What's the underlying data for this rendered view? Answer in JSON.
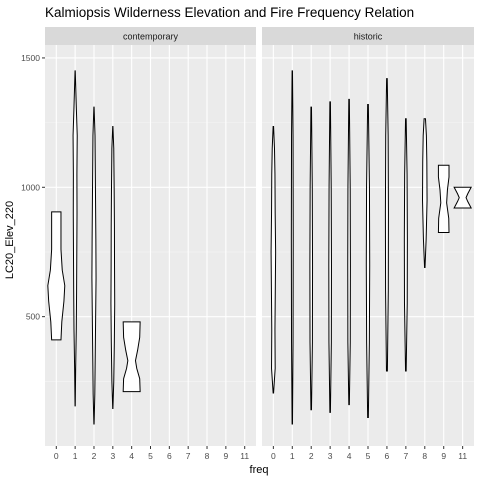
{
  "chart_data": {
    "type": "violin",
    "title": "Kalmiopsis Wilderness Elevation and Fire Frequency Relation",
    "xlabel": "freq",
    "ylabel": "LC20_Elev_220",
    "ylim": [
      0,
      1550
    ],
    "y_ticks": [
      500,
      1000,
      1500
    ],
    "x_categories": [
      "0",
      "1",
      "2",
      "3",
      "4",
      "5",
      "6",
      "7",
      "8",
      "9",
      "11"
    ],
    "grid": true,
    "panels": [
      {
        "name": "contemporary",
        "violins": [
          {
            "freq": "0",
            "min": 410,
            "max": 905,
            "max_halfwidth": 0.45,
            "profile": [
              [
                410,
                0.55
              ],
              [
                480,
                0.65
              ],
              [
                560,
                0.9
              ],
              [
                620,
                1.0
              ],
              [
                680,
                0.7
              ],
              [
                760,
                0.55
              ],
              [
                850,
                0.55
              ],
              [
                905,
                0.55
              ]
            ]
          },
          {
            "freq": "1",
            "min": 155,
            "max": 1450,
            "max_halfwidth": 0.11,
            "profile": [
              [
                155,
                0.05
              ],
              [
                300,
                0.25
              ],
              [
                450,
                0.55
              ],
              [
                600,
                0.7
              ],
              [
                750,
                0.8
              ],
              [
                900,
                0.9
              ],
              [
                1050,
                0.85
              ],
              [
                1200,
                1.0
              ],
              [
                1300,
                0.6
              ],
              [
                1450,
                0.05
              ]
            ]
          },
          {
            "freq": "2",
            "min": 85,
            "max": 1310,
            "max_halfwidth": 0.11,
            "profile": [
              [
                85,
                0.05
              ],
              [
                200,
                0.4
              ],
              [
                350,
                0.6
              ],
              [
                500,
                0.8
              ],
              [
                650,
                1.0
              ],
              [
                800,
                0.9
              ],
              [
                950,
                0.75
              ],
              [
                1100,
                0.6
              ],
              [
                1200,
                0.5
              ],
              [
                1310,
                0.05
              ]
            ]
          },
          {
            "freq": "3",
            "min": 145,
            "max": 1235,
            "max_halfwidth": 0.1,
            "profile": [
              [
                145,
                0.05
              ],
              [
                250,
                0.5
              ],
              [
                400,
                0.8
              ],
              [
                550,
                1.0
              ],
              [
                700,
                0.9
              ],
              [
                850,
                0.85
              ],
              [
                1000,
                0.7
              ],
              [
                1150,
                0.5
              ],
              [
                1235,
                0.05
              ]
            ]
          },
          {
            "freq": "4",
            "min": 210,
            "max": 480,
            "max_halfwidth": 0.45,
            "profile": [
              [
                210,
                1.0
              ],
              [
                260,
                0.95
              ],
              [
                300,
                0.6
              ],
              [
                330,
                0.45
              ],
              [
                370,
                0.7
              ],
              [
                420,
                0.95
              ],
              [
                480,
                1.0
              ]
            ]
          }
        ]
      },
      {
        "name": "historic",
        "violins": [
          {
            "freq": "0",
            "min": 205,
            "max": 1235,
            "max_halfwidth": 0.12,
            "profile": [
              [
                205,
                0.1
              ],
              [
                300,
                0.8
              ],
              [
                450,
                0.7
              ],
              [
                600,
                0.85
              ],
              [
                750,
                1.0
              ],
              [
                900,
                0.8
              ],
              [
                1050,
                0.7
              ],
              [
                1150,
                0.5
              ],
              [
                1235,
                0.1
              ]
            ]
          },
          {
            "freq": "1",
            "min": 85,
            "max": 1450,
            "max_halfwidth": 0.05,
            "profile": [
              [
                85,
                0.2
              ],
              [
                400,
                0.8
              ],
              [
                800,
                1.0
              ],
              [
                1200,
                0.8
              ],
              [
                1450,
                0.2
              ]
            ]
          },
          {
            "freq": "2",
            "min": 140,
            "max": 1310,
            "max_halfwidth": 0.07,
            "profile": [
              [
                140,
                0.2
              ],
              [
                400,
                0.9
              ],
              [
                700,
                1.0
              ],
              [
                1000,
                0.8
              ],
              [
                1310,
                0.2
              ]
            ]
          },
          {
            "freq": "3",
            "min": 130,
            "max": 1330,
            "max_halfwidth": 0.07,
            "profile": [
              [
                130,
                0.2
              ],
              [
                400,
                0.9
              ],
              [
                700,
                1.0
              ],
              [
                1000,
                0.8
              ],
              [
                1330,
                0.2
              ]
            ]
          },
          {
            "freq": "4",
            "min": 160,
            "max": 1340,
            "max_halfwidth": 0.07,
            "profile": [
              [
                160,
                0.2
              ],
              [
                400,
                0.9
              ],
              [
                700,
                1.0
              ],
              [
                1000,
                0.85
              ],
              [
                1340,
                0.2
              ]
            ]
          },
          {
            "freq": "5",
            "min": 110,
            "max": 1320,
            "max_halfwidth": 0.09,
            "profile": [
              [
                110,
                0.2
              ],
              [
                400,
                0.8
              ],
              [
                700,
                1.0
              ],
              [
                1000,
                0.85
              ],
              [
                1320,
                0.2
              ]
            ]
          },
          {
            "freq": "6",
            "min": 290,
            "max": 1420,
            "max_halfwidth": 0.08,
            "profile": [
              [
                290,
                0.3
              ],
              [
                600,
                0.9
              ],
              [
                900,
                1.0
              ],
              [
                1200,
                0.8
              ],
              [
                1420,
                0.2
              ]
            ]
          },
          {
            "freq": "7",
            "min": 290,
            "max": 1265,
            "max_halfwidth": 0.08,
            "profile": [
              [
                290,
                0.2
              ],
              [
                550,
                0.9
              ],
              [
                800,
                1.0
              ],
              [
                1050,
                0.8
              ],
              [
                1265,
                0.2
              ]
            ]
          },
          {
            "freq": "8",
            "min": 690,
            "max": 1265,
            "max_halfwidth": 0.12,
            "profile": [
              [
                690,
                0.1
              ],
              [
                800,
                0.6
              ],
              [
                950,
                1.0
              ],
              [
                1100,
                0.9
              ],
              [
                1200,
                0.7
              ],
              [
                1265,
                0.3
              ]
            ]
          },
          {
            "freq": "9",
            "min": 825,
            "max": 1085,
            "max_halfwidth": 0.28,
            "profile": [
              [
                825,
                1.0
              ],
              [
                880,
                0.95
              ],
              [
                940,
                0.55
              ],
              [
                990,
                0.7
              ],
              [
                1040,
                1.0
              ],
              [
                1085,
                1.0
              ]
            ]
          },
          {
            "freq": "11",
            "min": 920,
            "max": 1000,
            "max_halfwidth": 0.45,
            "profile": [
              [
                920,
                1.0
              ],
              [
                945,
                0.6
              ],
              [
                960,
                0.4
              ],
              [
                975,
                0.6
              ],
              [
                1000,
                1.0
              ]
            ]
          }
        ]
      }
    ],
    "colors": {
      "panel_background": "#ebebeb",
      "grid_major": "#ffffff",
      "grid_minor": "#f5f5f5",
      "strip_background": "#d9d9d9",
      "violin_fill": "#ffffff",
      "violin_stroke": "#000000",
      "axis_text": "#4d4d4d",
      "tick_mark": "#333333"
    }
  }
}
